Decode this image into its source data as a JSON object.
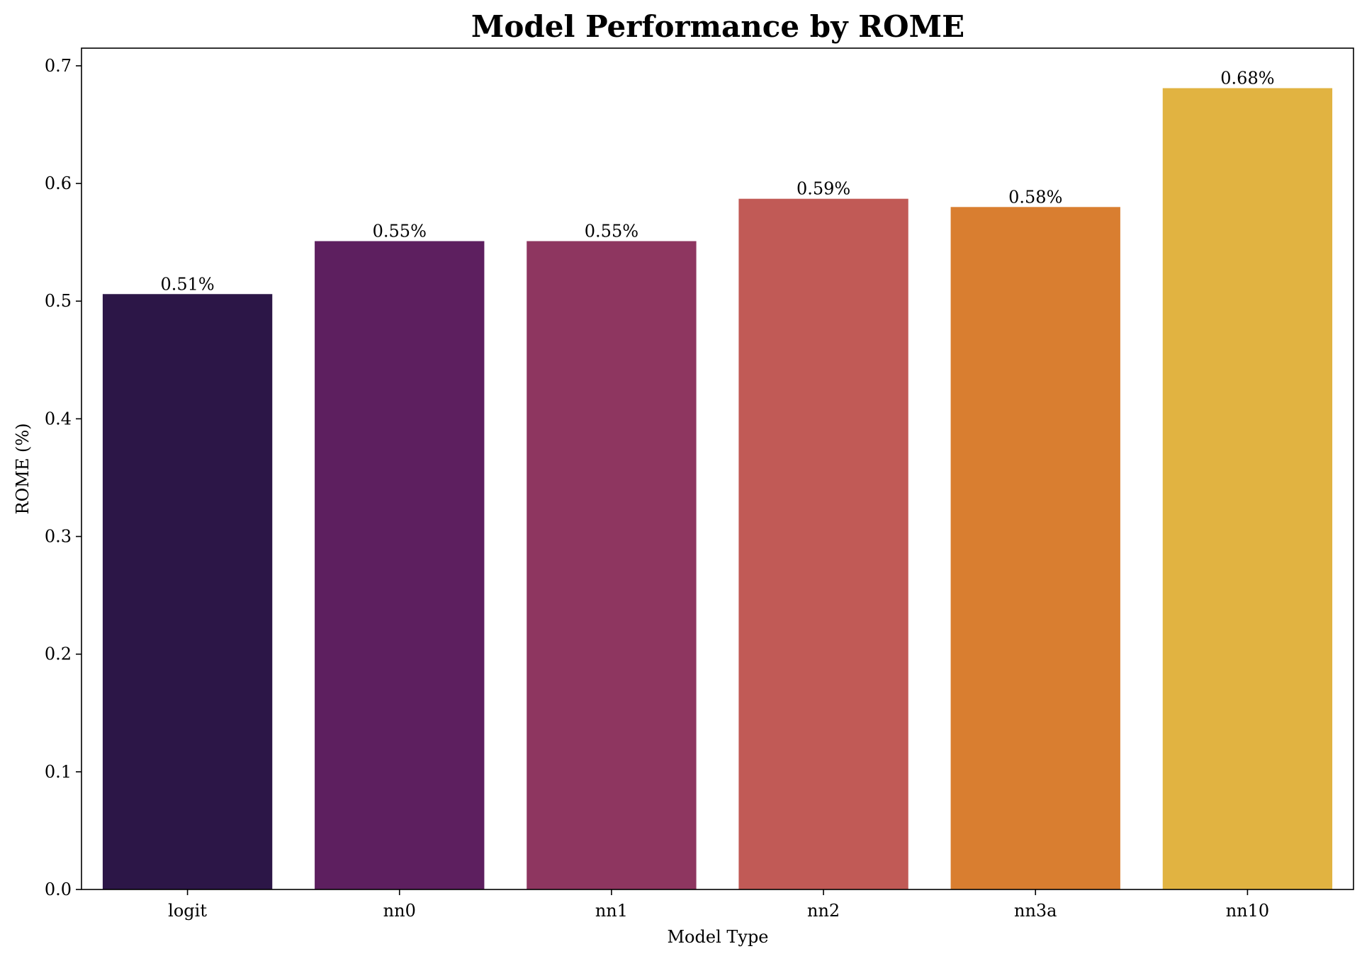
{
  "chart_data": {
    "type": "bar",
    "title": "Model Performance by ROME",
    "xlabel": "Model Type",
    "ylabel": "ROME (%)",
    "categories": [
      "logit",
      "nn0",
      "nn1",
      "nn2",
      "nn3a",
      "nn10"
    ],
    "values": [
      0.506,
      0.551,
      0.551,
      0.587,
      0.58,
      0.681
    ],
    "data_labels": [
      "0.51%",
      "0.55%",
      "0.55%",
      "0.59%",
      "0.58%",
      "0.68%"
    ],
    "bar_colors": [
      "#2c1647",
      "#5d1f5f",
      "#8e3660",
      "#c15a56",
      "#d97e30",
      "#e1b341"
    ],
    "ylim": [
      0,
      0.715
    ],
    "yticks": [
      0.0,
      0.1,
      0.2,
      0.3,
      0.4,
      0.5,
      0.6,
      0.7
    ],
    "ytick_labels": [
      "0.0",
      "0.1",
      "0.2",
      "0.3",
      "0.4",
      "0.5",
      "0.6",
      "0.7"
    ],
    "grid": false,
    "legend": "none"
  }
}
